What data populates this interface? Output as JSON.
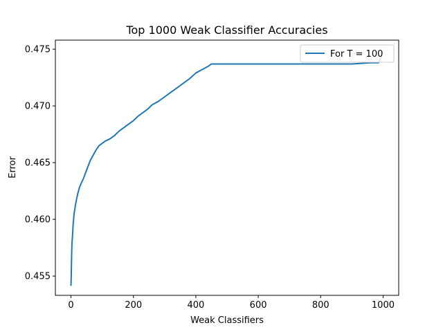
{
  "chart_data": {
    "type": "line",
    "title": "Top 1000 Weak Classifier Accuracies",
    "xlabel": "Weak Classifiers",
    "ylabel": "Error",
    "xlim": [
      -50,
      1050
    ],
    "ylim": [
      0.4533,
      0.4758
    ],
    "x_ticks": [
      0,
      200,
      400,
      600,
      800,
      1000
    ],
    "x_tick_labels": [
      "0",
      "200",
      "400",
      "600",
      "800",
      "1000"
    ],
    "y_ticks": [
      0.455,
      0.46,
      0.465,
      0.47,
      0.475
    ],
    "y_tick_labels": [
      "0.455",
      "0.460",
      "0.465",
      "0.470",
      "0.475"
    ],
    "grid": false,
    "legend_position": "upper-right",
    "colors": {
      "series_1": "#1f77b4"
    },
    "series": [
      {
        "name": "For T = 100",
        "x": [
          0,
          1,
          2,
          3,
          5,
          7,
          10,
          14,
          18,
          22,
          27,
          33,
          40,
          48,
          55,
          62,
          70,
          80,
          90,
          100,
          110,
          125,
          140,
          155,
          170,
          185,
          200,
          215,
          230,
          245,
          260,
          280,
          300,
          320,
          340,
          360,
          380,
          400,
          420,
          440,
          450,
          460,
          500,
          600,
          700,
          800,
          900,
          960,
          985,
          990,
          995
        ],
        "y": [
          0.4542,
          0.4552,
          0.4568,
          0.4578,
          0.4586,
          0.4596,
          0.4605,
          0.4612,
          0.4618,
          0.4623,
          0.4628,
          0.4632,
          0.4636,
          0.4642,
          0.4647,
          0.4652,
          0.4656,
          0.4661,
          0.4665,
          0.4667,
          0.4669,
          0.4671,
          0.4674,
          0.4678,
          0.4681,
          0.4684,
          0.4687,
          0.4691,
          0.4694,
          0.4697,
          0.4701,
          0.4704,
          0.4708,
          0.4712,
          0.4716,
          0.472,
          0.4724,
          0.4729,
          0.4732,
          0.4735,
          0.4737,
          0.4737,
          0.4737,
          0.4737,
          0.4737,
          0.4737,
          0.4737,
          0.4738,
          0.4738,
          0.4741,
          0.4744
        ]
      }
    ]
  }
}
